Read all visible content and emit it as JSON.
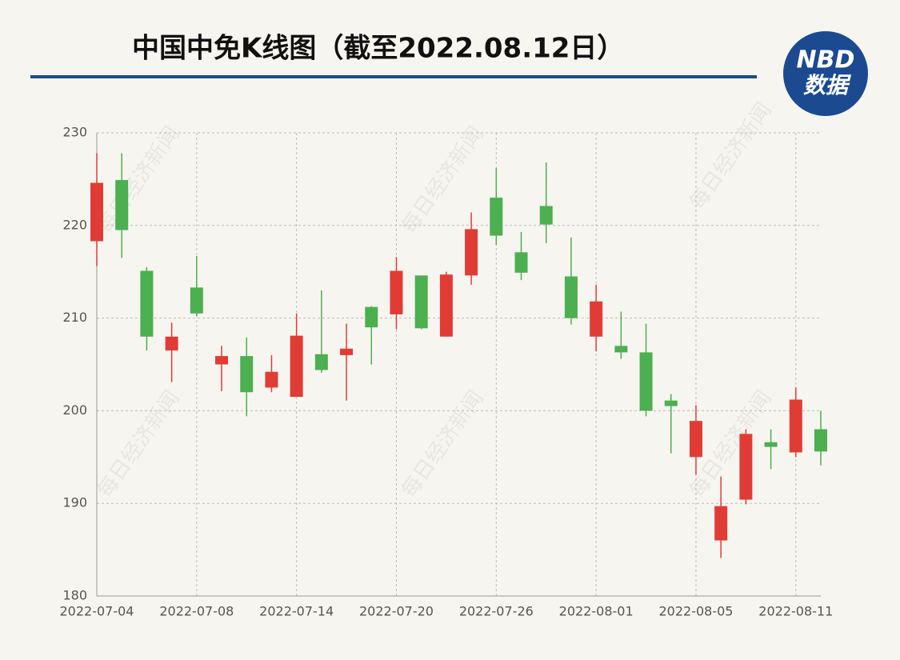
{
  "chart_data": {
    "type": "candlestick",
    "title": "中国中免K线图（截至2022.08.12日）",
    "logo": {
      "line1": "NBD",
      "line2": "数据"
    },
    "watermark": "每日经济新闻",
    "categories": [
      "2022-07-04",
      null,
      null,
      null,
      "2022-07-08",
      null,
      null,
      null,
      "2022-07-14",
      null,
      null,
      null,
      "2022-07-20",
      null,
      null,
      null,
      "2022-07-26",
      null,
      null,
      null,
      "2022-08-01",
      null,
      null,
      null,
      "2022-08-05",
      null,
      null,
      null,
      "2022-08-11",
      null
    ],
    "open": [
      218.3,
      224.9,
      215.1,
      206.5,
      213.3,
      205.0,
      205.9,
      202.5,
      201.5,
      206.1,
      206.0,
      211.2,
      210.4,
      214.6,
      208.0,
      214.6,
      223.0,
      217.1,
      222.1,
      214.5,
      208.0,
      207.0,
      206.3,
      201.1,
      195.0,
      186.0,
      190.4,
      196.6,
      195.5,
      198.0
    ],
    "high": [
      227.8,
      227.8,
      215.5,
      209.5,
      216.7,
      207.0,
      207.9,
      206.0,
      210.5,
      213.0,
      209.4,
      211.3,
      216.6,
      214.6,
      215.0,
      221.4,
      226.2,
      219.3,
      226.8,
      218.7,
      213.6,
      210.7,
      209.4,
      201.8,
      200.6,
      192.9,
      198.0,
      198.0,
      202.5,
      200.0
    ],
    "low": [
      215.6,
      216.5,
      206.5,
      203.1,
      210.2,
      202.1,
      199.4,
      202.0,
      201.5,
      204.1,
      201.1,
      205.0,
      208.8,
      208.8,
      208.0,
      213.6,
      217.9,
      214.1,
      218.1,
      209.3,
      206.4,
      205.6,
      199.4,
      195.4,
      193.1,
      184.1,
      189.9,
      193.7,
      195.0,
      194.1
    ],
    "close": [
      224.6,
      219.5,
      208.0,
      208.0,
      210.5,
      205.9,
      202.0,
      204.2,
      208.1,
      204.4,
      206.7,
      209.0,
      215.1,
      208.9,
      214.7,
      219.6,
      218.9,
      214.9,
      220.1,
      210.0,
      211.8,
      206.3,
      200.0,
      200.5,
      198.9,
      189.7,
      197.5,
      196.1,
      201.2,
      195.6
    ],
    "up_color": "#e03c35",
    "down_color": "#4caf50",
    "ylim": [
      180,
      230
    ],
    "yticks": [
      180,
      190,
      200,
      210,
      220,
      230
    ],
    "grid": true
  }
}
